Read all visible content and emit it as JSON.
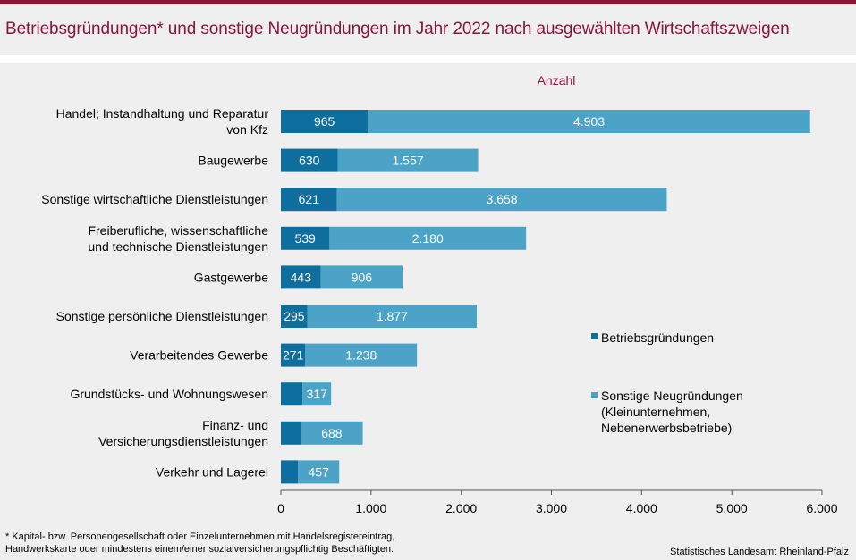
{
  "title": "Betriebsgründungen* und sonstige Neugründungen im Jahr 2022 nach ausgewählten Wirtschaftszweigen",
  "footnote": {
    "line1": "* Kapital- bzw. Personengesellschaft oder Einzelunternehmen mit Handelsregistereintrag,",
    "line2": "Handwerkskarte oder mindestens einem/einer sozialversicherungspflichtig Beschäftigten."
  },
  "source": "Statistisches Landesamt Rheinland-Pfalz",
  "colors": {
    "accent": "#8a1538",
    "background": "#efefef",
    "betrieb": "#0e6e9e",
    "sonstige": "#4ba3c7"
  },
  "chart_data": {
    "type": "bar",
    "orientation": "horizontal",
    "stacked": true,
    "unit_label": "Anzahl",
    "categories": [
      [
        "Handel; Instandhaltung und Reparatur",
        "von Kfz"
      ],
      [
        "Baugewerbe"
      ],
      [
        "Sonstige wirtschaftliche Dienstleistungen"
      ],
      [
        "Freiberufliche, wissenschaftliche",
        "und technische Dienstleistungen"
      ],
      [
        "Gastgewerbe"
      ],
      [
        "Sonstige persönliche Dienstleistungen"
      ],
      [
        "Verarbeitendes Gewerbe"
      ],
      [
        "Grundstücks- und Wohnungswesen"
      ],
      [
        "Finanz- und",
        "Versicherungsdienstleistungen"
      ],
      [
        "Verkehr und Lagerei"
      ]
    ],
    "series": [
      {
        "name": "Betriebsgründungen",
        "values": [
          965,
          630,
          621,
          539,
          443,
          295,
          271,
          240,
          220,
          190
        ],
        "labels": [
          "965",
          "630",
          "621",
          "539",
          "443",
          "295",
          "271",
          "",
          "",
          ""
        ],
        "color": "#0e6e9e"
      },
      {
        "name": "Sonstige Neugründungen (Kleinunternehmen, Nebenerwerbsbetriebe)",
        "legend_lines": [
          "Sonstige Neugründungen",
          "(Kleinunternehmen,",
          "Nebenerwerbsbetriebe)"
        ],
        "values": [
          4903,
          1557,
          3658,
          2180,
          906,
          1877,
          1238,
          317,
          688,
          457
        ],
        "labels": [
          "4.903",
          "1.557",
          "3.658",
          "2.180",
          "906",
          "1.877",
          "1.238",
          "317",
          "688",
          "457"
        ],
        "color": "#4ba3c7"
      }
    ],
    "xlim": [
      0,
      6000
    ],
    "xticks": [
      0,
      1000,
      2000,
      3000,
      4000,
      5000,
      6000
    ],
    "xtick_labels": [
      "0",
      "1.000",
      "2.000",
      "3.000",
      "4.000",
      "5.000",
      "6.000"
    ],
    "grid": false,
    "legend_position": "right"
  }
}
